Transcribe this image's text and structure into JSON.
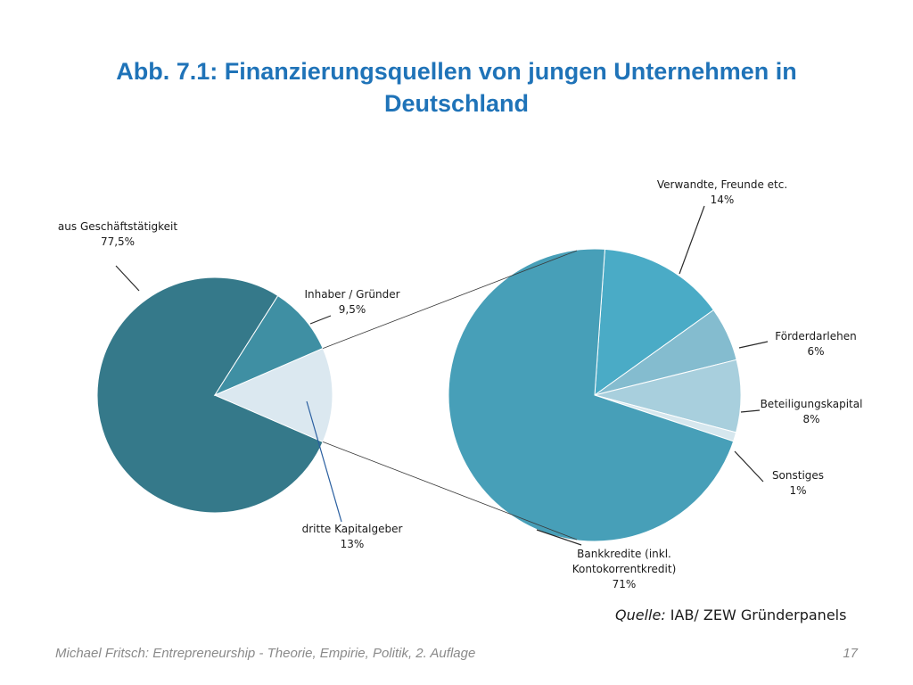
{
  "title": {
    "line1": "Abb. 7.1: Finanzierungsquellen von jungen Unternehmen in",
    "line2": "Deutschland"
  },
  "source": {
    "label": "Quelle:",
    "text": " IAB/ ZEW Gründerpanels"
  },
  "footer": {
    "citation": "Michael Fritsch: Entrepreneurship - Theorie, Empirie, Politik, 2. Auflage",
    "page_number": "17"
  },
  "chart_data": [
    {
      "type": "pie",
      "title": "",
      "slices": [
        {
          "label": "aus Geschäftstätigkeit",
          "value": 77.5,
          "value_label": "77,5%",
          "color": "#35798a"
        },
        {
          "label": "Inhaber / Gründer",
          "value": 9.5,
          "value_label": "9,5%",
          "color": "#3f8fa3"
        },
        {
          "label": "dritte Kapitalgeber",
          "value": 13,
          "value_label": "13%",
          "color": "#dbe8f0"
        }
      ]
    },
    {
      "type": "pie",
      "title": "",
      "breakdown_of": "dritte Kapitalgeber",
      "slices": [
        {
          "label": "Verwandte, Freunde etc.",
          "value": 14,
          "value_label": "14%",
          "color": "#4aabc6"
        },
        {
          "label": "Förderdarlehen",
          "value": 6,
          "value_label": "6%",
          "color": "#84bccf"
        },
        {
          "label": "Beteiligungskapital",
          "value": 8,
          "value_label": "8%",
          "color": "#a8cfdd"
        },
        {
          "label": "Sonstiges",
          "value": 1,
          "value_label": "1%",
          "color": "#d6e7ee"
        },
        {
          "label": "Bankkredite (inkl. Kontokorrentkredit)",
          "value": 71,
          "value_label": "71%",
          "color": "#479fb8"
        }
      ]
    }
  ]
}
